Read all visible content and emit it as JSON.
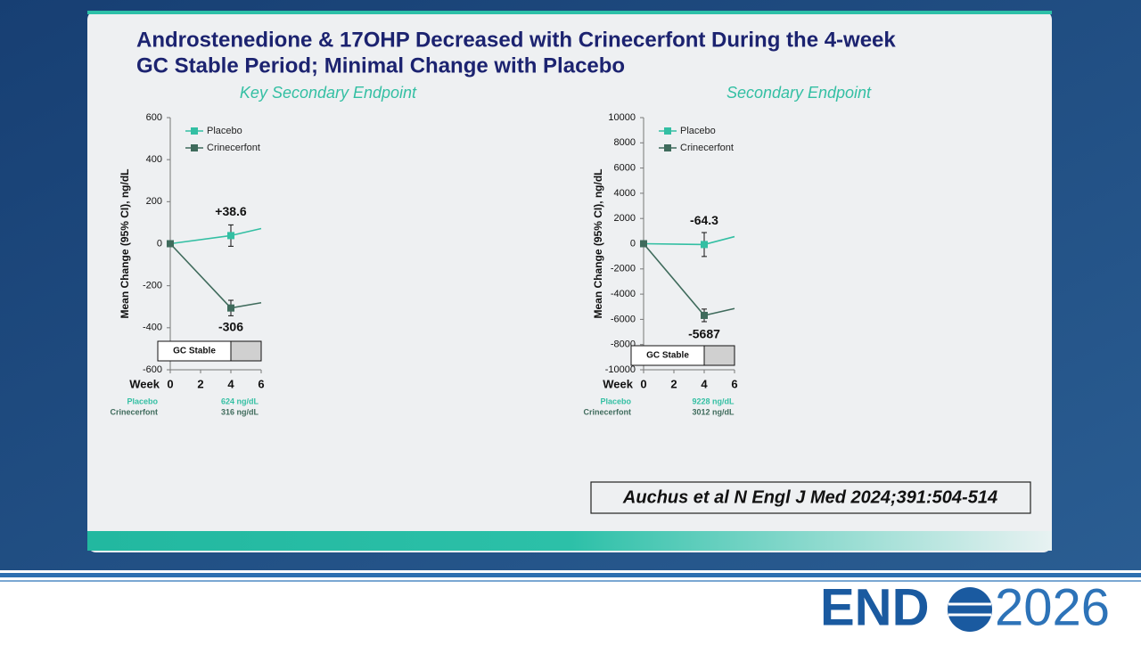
{
  "slide": {
    "title_line1": "Androstenedione & 17OHP Decreased with Crinecerfont During the 4-week",
    "title_line2": "GC Stable Period; Minimal Change with Placebo",
    "citation": "Auchus et al N Engl J Med 2024;391:504-514",
    "logo_text": "END",
    "logo_year": "2026"
  },
  "chart_data": [
    {
      "type": "line",
      "subtitle": "Key Secondary Endpoint",
      "ylabel": "Mean Change (95% CI), ng/dL",
      "xlabel": "Week",
      "x": [
        0,
        4,
        6
      ],
      "xlim": [
        0,
        6
      ],
      "xticks": [
        0,
        2,
        4,
        6
      ],
      "ylim": [
        -600,
        600
      ],
      "yticks": [
        -600,
        -400,
        -200,
        0,
        200,
        400,
        600
      ],
      "period_label": "GC Stable",
      "series": [
        {
          "name": "Placebo",
          "color": "#33bfa3",
          "values": [
            0,
            38.6,
            72
          ],
          "errors": [
            null,
            51,
            null
          ],
          "value_labels": [
            null,
            "+38.6",
            null
          ],
          "baseline": "624 ng/dL"
        },
        {
          "name": "Crinecerfont",
          "color": "#3f6b5c",
          "values": [
            0,
            -306,
            -281
          ],
          "errors": [
            null,
            37,
            null
          ],
          "value_labels": [
            null,
            "-306",
            null
          ],
          "baseline": "316 ng/dL"
        }
      ]
    },
    {
      "type": "line",
      "subtitle": "Secondary Endpoint",
      "ylabel": "Mean Change (95% CI), ng/dL",
      "xlabel": "Week",
      "x": [
        0,
        4,
        6
      ],
      "xlim": [
        0,
        6
      ],
      "xticks": [
        0,
        2,
        4,
        6
      ],
      "ylim": [
        -10000,
        10000
      ],
      "yticks": [
        -10000,
        -8000,
        -6000,
        -4000,
        -2000,
        0,
        2000,
        4000,
        6000,
        8000,
        10000
      ],
      "period_label": "GC Stable",
      "series": [
        {
          "name": "Placebo",
          "color": "#33bfa3",
          "values": [
            0,
            -64.3,
            560
          ],
          "errors": [
            null,
            950,
            null
          ],
          "value_labels": [
            null,
            "-64.3",
            null
          ],
          "baseline": "9228 ng/dL"
        },
        {
          "name": "Crinecerfont",
          "color": "#3f6b5c",
          "values": [
            0,
            -5687,
            -5140
          ],
          "errors": [
            null,
            500,
            null
          ],
          "value_labels": [
            null,
            "-5687",
            null
          ],
          "baseline": "3012 ng/dL"
        }
      ]
    }
  ]
}
